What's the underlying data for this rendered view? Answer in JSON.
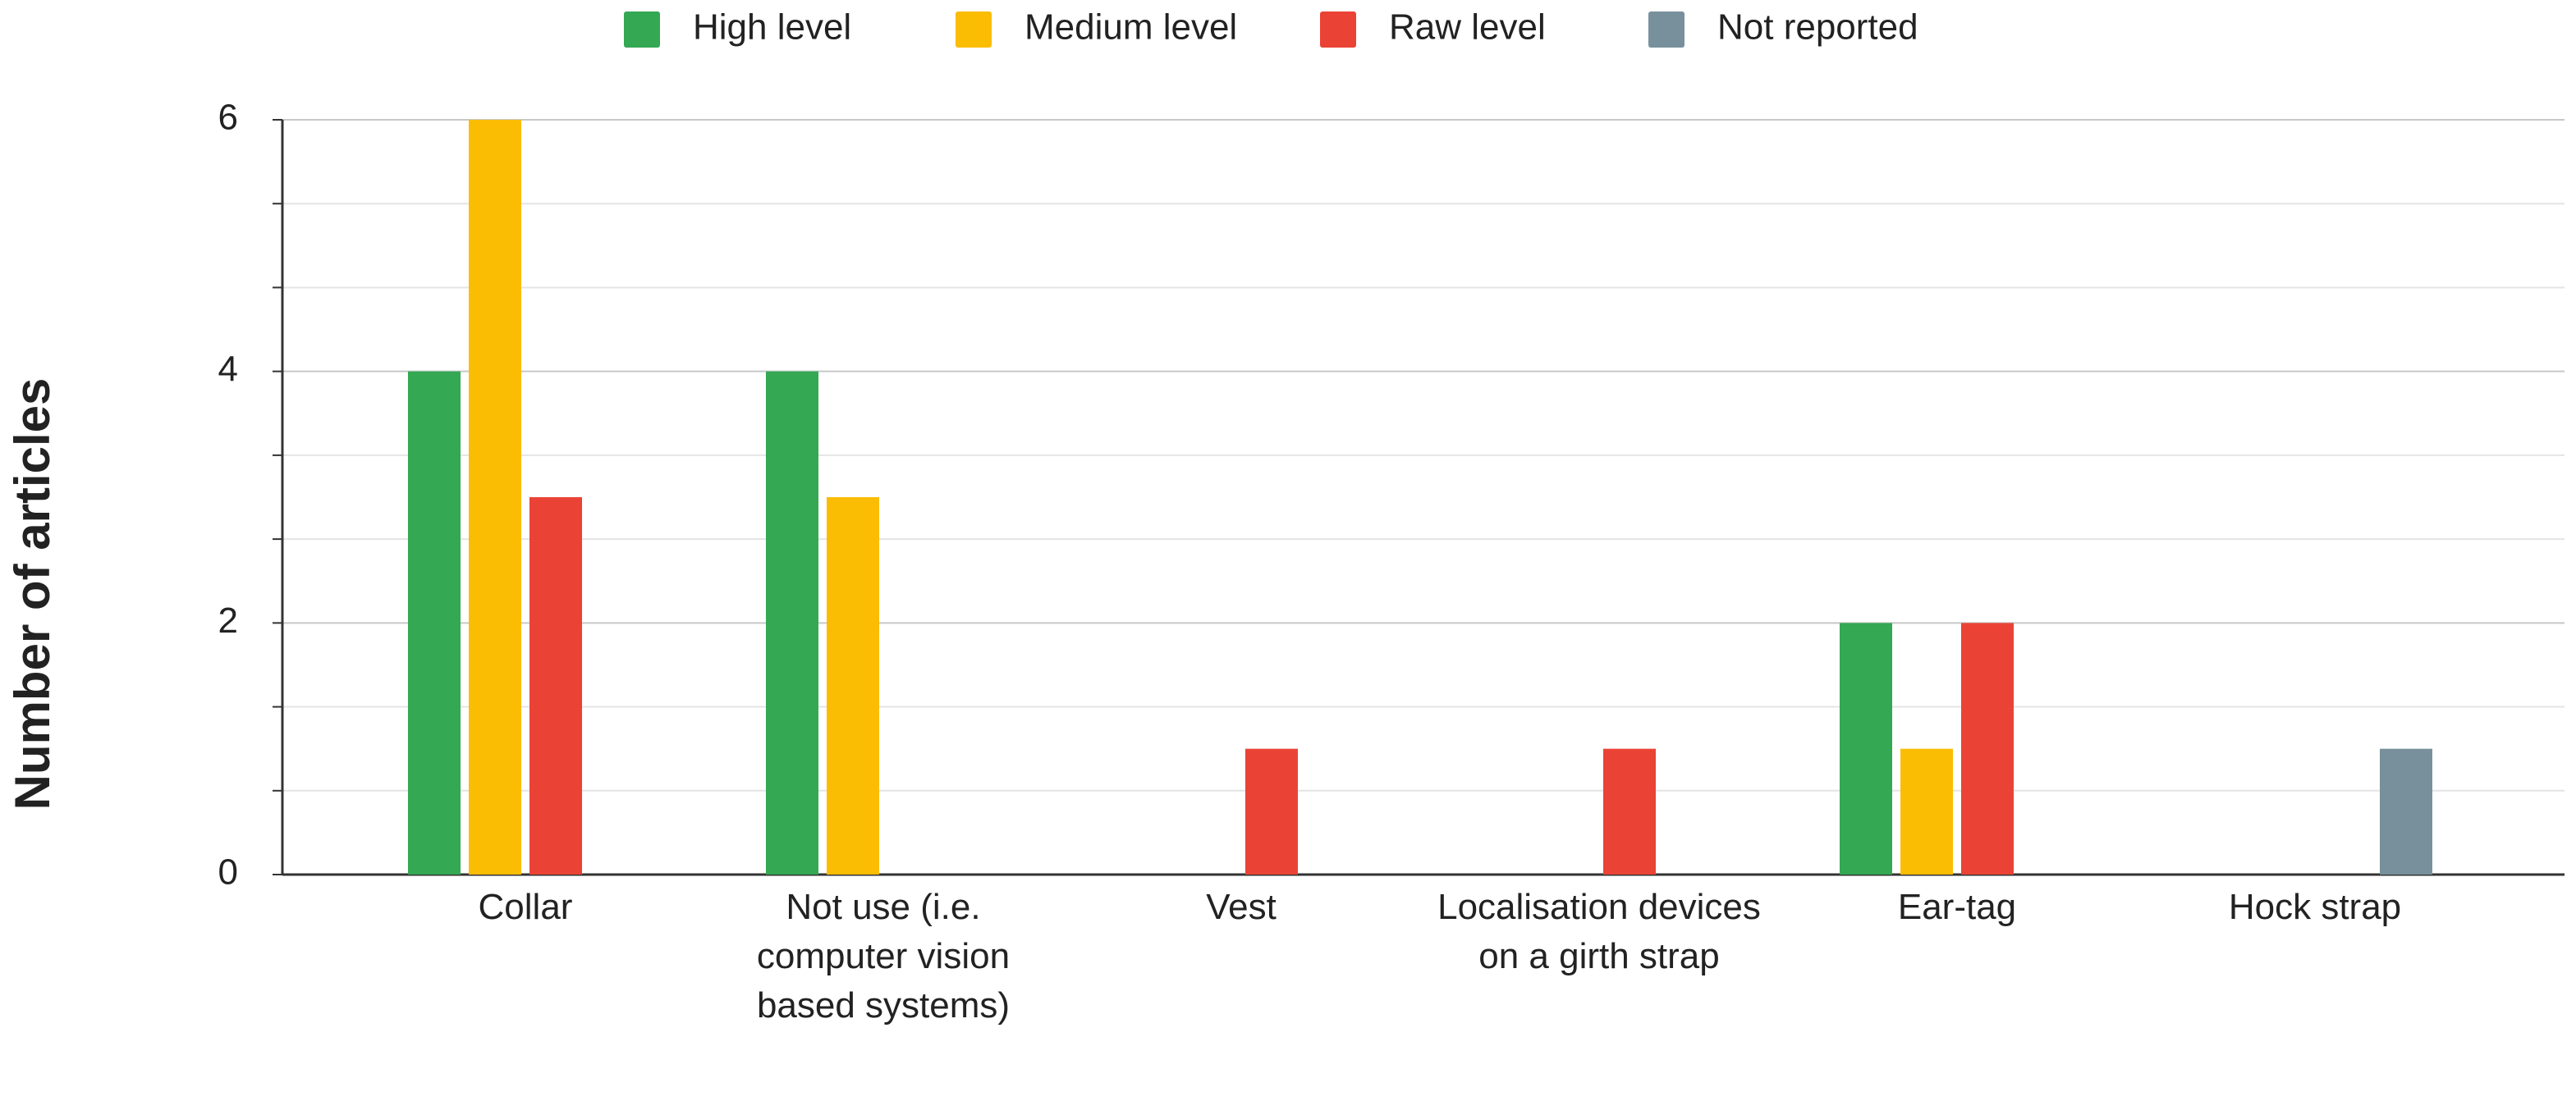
{
  "chart_data": {
    "type": "bar",
    "y_label": "Number of articles",
    "categories": [
      "Collar",
      "Not use (i.e. computer vision based systems)",
      "Vest",
      "Localisation devices on a girth strap",
      "Ear-tag",
      "Hock strap"
    ],
    "series": [
      {
        "name": "High level",
        "color": "#34a853",
        "values": [
          4,
          4,
          0,
          0,
          2,
          0
        ]
      },
      {
        "name": "Medium level",
        "color": "#fbbc04",
        "values": [
          6,
          3,
          0,
          0,
          1,
          0
        ]
      },
      {
        "name": "Raw level",
        "color": "#ea4335",
        "values": [
          3,
          0,
          1,
          1,
          2,
          0
        ]
      },
      {
        "name": "Not reported",
        "color": "#78909c",
        "values": [
          0,
          0,
          0,
          0,
          0,
          1
        ]
      }
    ],
    "ylim": [
      0,
      6
    ],
    "yticks": [
      0,
      2,
      4,
      6
    ],
    "grid": true,
    "legend": "top"
  }
}
